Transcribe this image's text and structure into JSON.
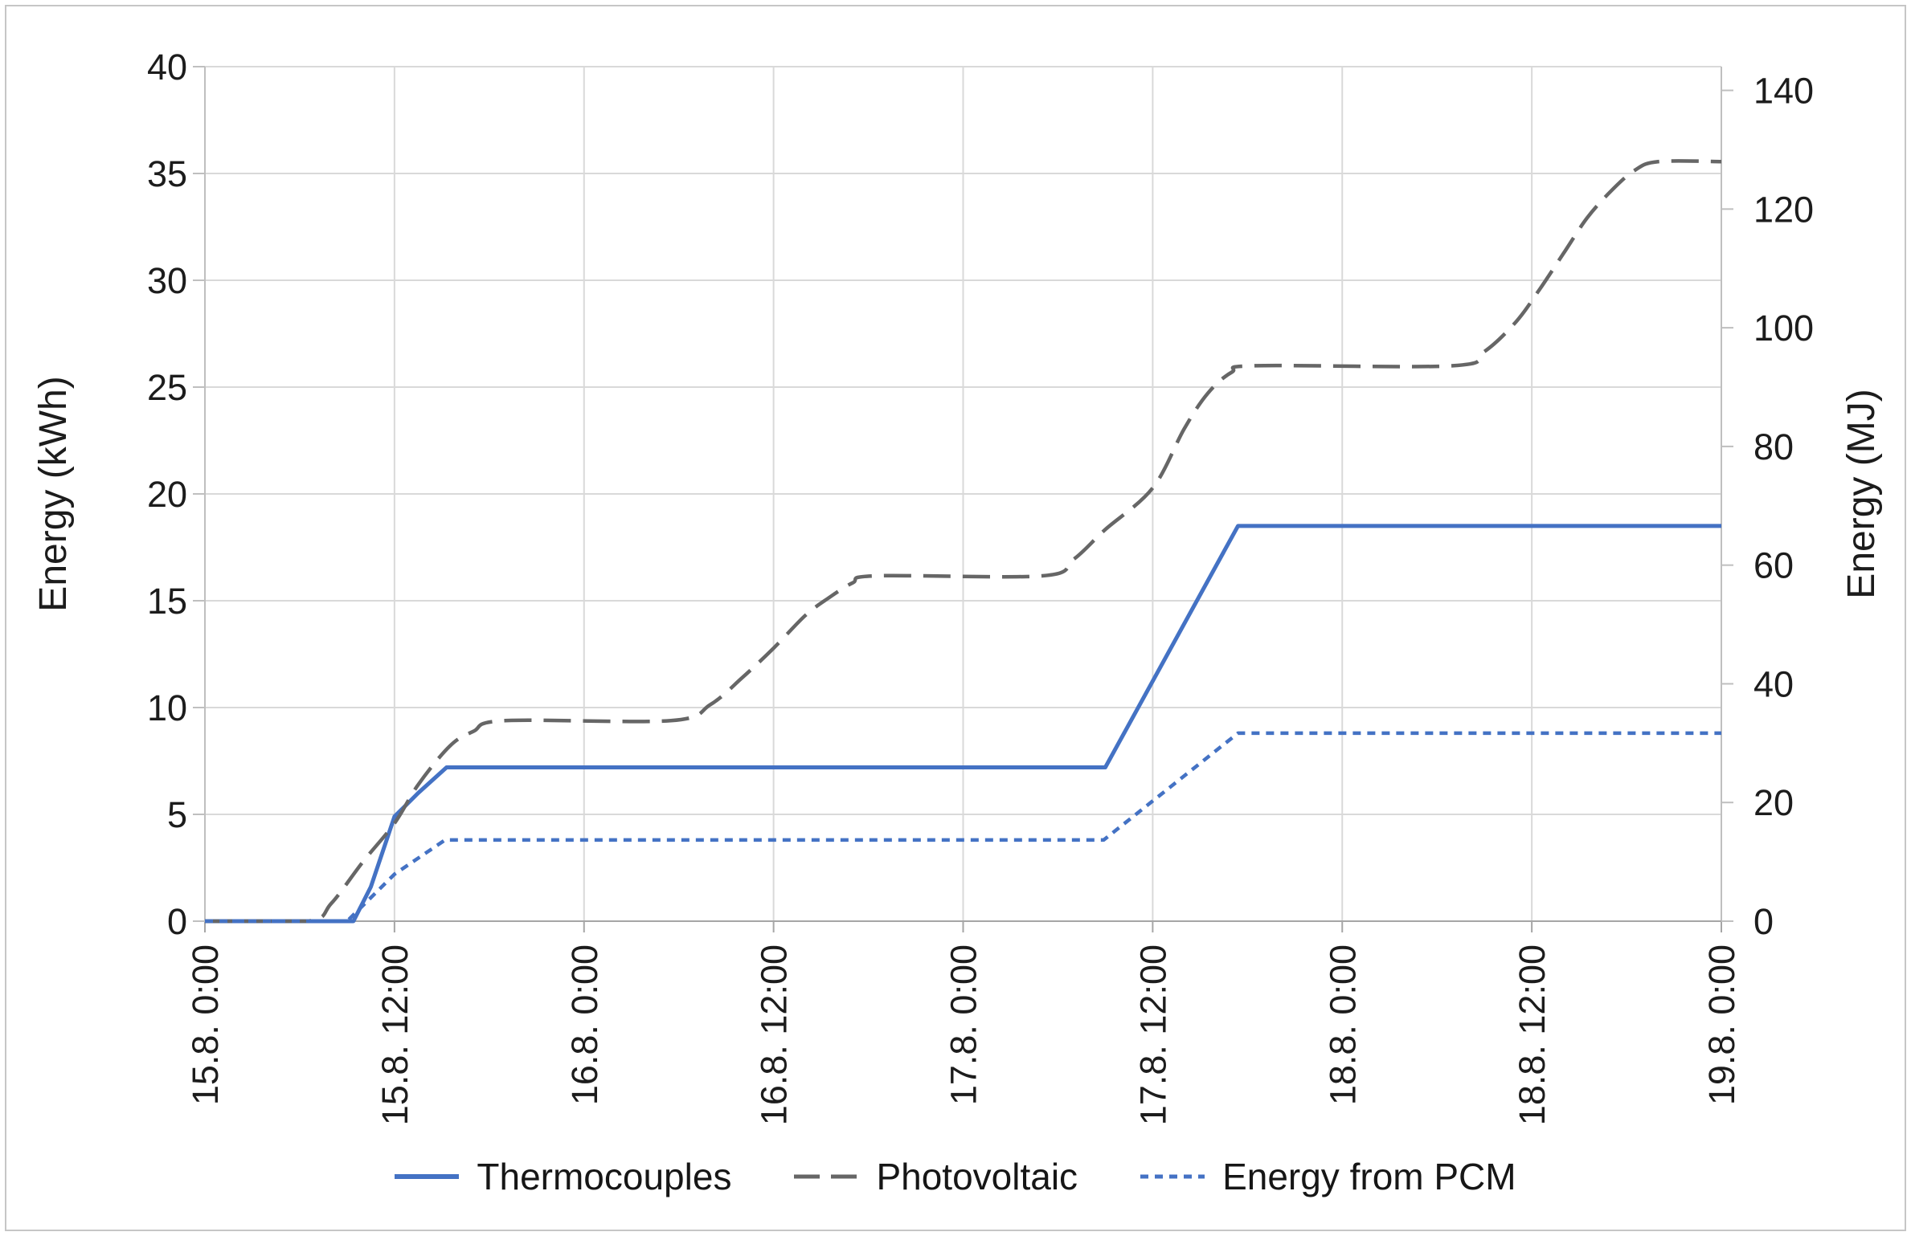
{
  "figure": {
    "background": "#ffffff",
    "border_color": "#c6c6c6",
    "gridline_color": "#d9d9d9",
    "axis_line_color": "#bfbfbf",
    "x_axis_line_color": "#a6a6a6",
    "text_color": "#1c1c1c"
  },
  "chart_data": {
    "type": "line",
    "title": "",
    "x_axis": {
      "label": "",
      "tick_labels": [
        "15.8. 0:00",
        "15.8. 12:00",
        "16.8. 0:00",
        "16.8. 12:00",
        "17.8. 0:00",
        "17.8. 12:00",
        "18.8. 0:00",
        "18.8. 12:00",
        "19.8. 0:00"
      ],
      "tick_hours": [
        0,
        12,
        24,
        36,
        48,
        60,
        72,
        84,
        96
      ],
      "range_hours": [
        0,
        96
      ]
    },
    "left_axis": {
      "title": "Energy (kWh)",
      "ticks": [
        0,
        5,
        10,
        15,
        20,
        25,
        30,
        35,
        40
      ],
      "range": [
        0,
        40
      ]
    },
    "right_axis": {
      "title": "Energy (MJ)",
      "ticks": [
        0,
        20,
        40,
        60,
        80,
        100,
        120,
        140
      ],
      "range": [
        0,
        144
      ]
    },
    "grid": true,
    "legend": {
      "position": "bottom",
      "entries": [
        "Thermocouples",
        "Photovoltaic",
        "Energy from PCM"
      ]
    },
    "series": [
      {
        "name": "Thermocouples",
        "axis": "left",
        "unit": "kWh",
        "color": "#4472C4",
        "style": "solid",
        "smooth": false,
        "points": [
          [
            0,
            0
          ],
          [
            9.4,
            0
          ],
          [
            10.5,
            1.6
          ],
          [
            12,
            4.9
          ],
          [
            13.5,
            6.0
          ],
          [
            15.3,
            7.2
          ],
          [
            57,
            7.2
          ],
          [
            65.4,
            18.5
          ],
          [
            96,
            18.5
          ]
        ]
      },
      {
        "name": "Photovoltaic",
        "axis": "right",
        "unit": "MJ",
        "color": "#666666",
        "style": "dashed",
        "smooth": true,
        "points": [
          [
            0,
            0
          ],
          [
            6.5,
            0
          ],
          [
            8,
            3
          ],
          [
            10,
            10
          ],
          [
            12,
            16.5
          ],
          [
            13.5,
            23
          ],
          [
            15.5,
            29.5
          ],
          [
            17,
            32
          ],
          [
            19,
            33.8
          ],
          [
            29.5,
            33.8
          ],
          [
            32,
            36.5
          ],
          [
            34,
            41
          ],
          [
            36,
            46
          ],
          [
            38,
            51.5
          ],
          [
            39.5,
            54.5
          ],
          [
            41,
            57
          ],
          [
            42.5,
            58.2
          ],
          [
            53,
            58.2
          ],
          [
            55,
            61
          ],
          [
            57,
            66
          ],
          [
            60,
            73
          ],
          [
            62,
            83
          ],
          [
            63.5,
            89
          ],
          [
            65,
            92.5
          ],
          [
            66.5,
            93.6
          ],
          [
            79,
            93.6
          ],
          [
            81,
            96
          ],
          [
            83,
            101
          ],
          [
            84.5,
            106.5
          ],
          [
            86,
            112.5
          ],
          [
            87.5,
            118.5
          ],
          [
            89,
            123
          ],
          [
            90.5,
            126.5
          ],
          [
            92,
            128
          ],
          [
            96,
            128
          ]
        ]
      },
      {
        "name": "Energy from PCM",
        "axis": "left",
        "unit": "kWh",
        "color": "#4472C4",
        "style": "dotted",
        "smooth": false,
        "points": [
          [
            0,
            0
          ],
          [
            9,
            0
          ],
          [
            12,
            2.2
          ],
          [
            15.2,
            3.8
          ],
          [
            56.9,
            3.8
          ],
          [
            65.4,
            8.8
          ],
          [
            96,
            8.8
          ]
        ]
      }
    ]
  }
}
